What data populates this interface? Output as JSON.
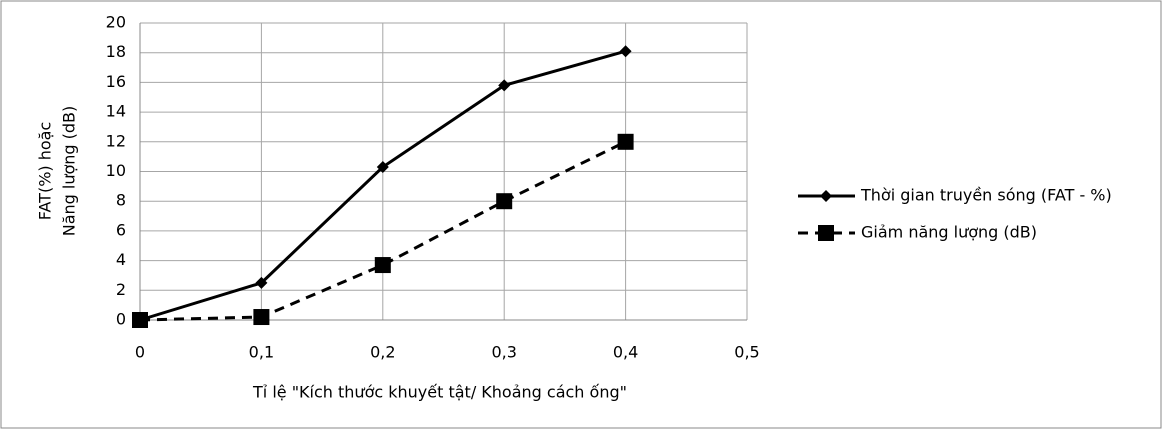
{
  "chart_data": {
    "type": "line",
    "x_label": "Tỉ lệ \"Kích thước khuyết tật/ Khoảng cách ống\"",
    "y_label": [
      "FAT(%) hoặc",
      "Năng lượng (dB)"
    ],
    "x": [
      0,
      0.1,
      0.2,
      0.3,
      0.4
    ],
    "series": [
      {
        "name": "Thời gian truyền sóng (FAT - %)",
        "color": "#000000",
        "dash": "solid",
        "marker": "diamond",
        "values": [
          0,
          2.5,
          10.3,
          15.8,
          18.1
        ]
      },
      {
        "name": "Giảm năng lượng (dB)",
        "color": "#000000",
        "dash": "dashed",
        "marker": "square",
        "values": [
          0,
          0.2,
          3.7,
          8.0,
          12.0
        ]
      }
    ],
    "xlim": [
      0,
      0.5
    ],
    "xticks": [
      0,
      {
        "value": 0.1,
        "label": "0,1"
      },
      {
        "value": 0.2,
        "label": "0,2"
      },
      {
        "value": 0.3,
        "label": "0,3"
      },
      {
        "value": 0.4,
        "label": "0,4"
      },
      {
        "value": 0.5,
        "label": "0,5"
      }
    ],
    "ylim": [
      0,
      20
    ],
    "yticks": [
      0,
      2,
      4,
      6,
      8,
      10,
      12,
      14,
      16,
      18,
      20
    ],
    "grid": true,
    "legend": "right"
  }
}
